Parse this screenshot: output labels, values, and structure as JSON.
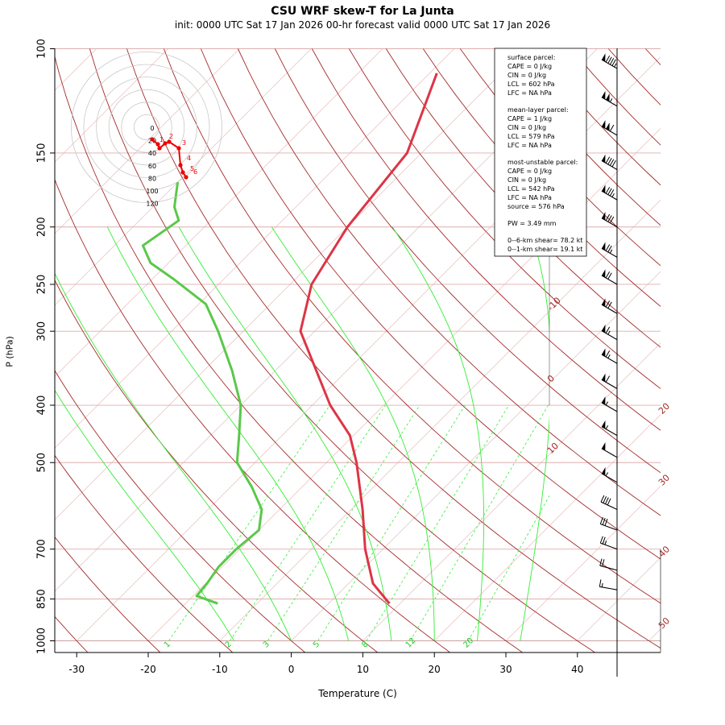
{
  "title": "CSU WRF skew-T for La Junta",
  "subtitle": "init: 0000 UTC Sat 17 Jan 2026     00-hr forecast valid 0000 UTC Sat 17 Jan 2026",
  "chart_data": {
    "type": "skew-t",
    "xlabel": "Temperature (C)",
    "ylabel": "P (hPa)",
    "xlim": [
      -33,
      52
    ],
    "ylim": [
      1000,
      100
    ],
    "x_ticks": [
      -30,
      -20,
      -10,
      0,
      10,
      20,
      30,
      40
    ],
    "p_ticks": [
      100,
      150,
      200,
      250,
      300,
      400,
      500,
      700,
      850,
      1000
    ],
    "isotherm_labels": [
      -10,
      0,
      10,
      20,
      30,
      40,
      50
    ],
    "mixing_ratio_labels": [
      "1",
      "2",
      "3",
      "5",
      "8",
      "12",
      "20"
    ],
    "temperature": {
      "name": "Temperature",
      "color": "#dc3545",
      "points": [
        {
          "p": 865,
          "t": 8.5
        },
        {
          "p": 800,
          "t": 3.4
        },
        {
          "p": 700,
          "t": -2.5
        },
        {
          "p": 600,
          "t": -8.4
        },
        {
          "p": 500,
          "t": -15.8
        },
        {
          "p": 450,
          "t": -20.5
        },
        {
          "p": 400,
          "t": -27.5
        },
        {
          "p": 300,
          "t": -42.0
        },
        {
          "p": 250,
          "t": -47.0
        },
        {
          "p": 200,
          "t": -50.0
        },
        {
          "p": 150,
          "t": -52.0
        },
        {
          "p": 110,
          "t": -59.0
        }
      ]
    },
    "dewpoint": {
      "name": "Dewpoint",
      "color": "#5ac84a",
      "points": [
        {
          "p": 865,
          "t": -15.5
        },
        {
          "p": 840,
          "t": -19.5
        },
        {
          "p": 800,
          "t": -19.8
        },
        {
          "p": 750,
          "t": -20.5
        },
        {
          "p": 700,
          "t": -20.5
        },
        {
          "p": 650,
          "t": -20.0
        },
        {
          "p": 600,
          "t": -22.5
        },
        {
          "p": 550,
          "t": -27.0
        },
        {
          "p": 500,
          "t": -32.5
        },
        {
          "p": 450,
          "t": -36.0
        },
        {
          "p": 400,
          "t": -40.0
        },
        {
          "p": 350,
          "t": -46.0
        },
        {
          "p": 300,
          "t": -53.5
        },
        {
          "p": 270,
          "t": -59.0
        },
        {
          "p": 245,
          "t": -67.0
        },
        {
          "p": 230,
          "t": -72.5
        },
        {
          "p": 215,
          "t": -76.0
        },
        {
          "p": 195,
          "t": -74.5
        },
        {
          "p": 185,
          "t": -77.0
        },
        {
          "p": 168,
          "t": -80.0
        }
      ]
    },
    "hodograph": {
      "rings": [
        "0",
        "20",
        "40",
        "60",
        "80",
        "100",
        "120"
      ],
      "point_labels": [
        "1",
        "2",
        "3",
        "4",
        "5",
        "6"
      ]
    },
    "wind_barbs": [
      {
        "p": 108,
        "dir": 300,
        "spd": 95
      },
      {
        "p": 125,
        "dir": 300,
        "spd": 105
      },
      {
        "p": 140,
        "dir": 300,
        "spd": 110
      },
      {
        "p": 160,
        "dir": 300,
        "spd": 90
      },
      {
        "p": 180,
        "dir": 300,
        "spd": 85
      },
      {
        "p": 200,
        "dir": 300,
        "spd": 80
      },
      {
        "p": 225,
        "dir": 300,
        "spd": 75
      },
      {
        "p": 250,
        "dir": 300,
        "spd": 70
      },
      {
        "p": 280,
        "dir": 300,
        "spd": 70
      },
      {
        "p": 310,
        "dir": 300,
        "spd": 65
      },
      {
        "p": 340,
        "dir": 300,
        "spd": 65
      },
      {
        "p": 375,
        "dir": 300,
        "spd": 60
      },
      {
        "p": 410,
        "dir": 300,
        "spd": 55
      },
      {
        "p": 450,
        "dir": 300,
        "spd": 55
      },
      {
        "p": 490,
        "dir": 300,
        "spd": 50
      },
      {
        "p": 540,
        "dir": 300,
        "spd": 55
      },
      {
        "p": 600,
        "dir": 295,
        "spd": 40
      },
      {
        "p": 650,
        "dir": 290,
        "spd": 30
      },
      {
        "p": 700,
        "dir": 290,
        "spd": 25
      },
      {
        "p": 760,
        "dir": 285,
        "spd": 20
      },
      {
        "p": 820,
        "dir": 280,
        "spd": 15
      }
    ]
  },
  "legend": {
    "surface_header": "surface parcel:",
    "surface_cape": "CAPE = 0 J/kg",
    "surface_cin": "CIN = 0 J/kg",
    "surface_lcl": "LCL = 602 hPa",
    "surface_lfc": "LFC = NA hPa",
    "meanlayer_header": "mean-layer parcel:",
    "meanlayer_cape": "CAPE = 1 J/kg",
    "meanlayer_cin": "CIN = 0 J/kg",
    "meanlayer_lcl": "LCL = 579 hPa",
    "meanlayer_lfc": "LFC = NA hPa",
    "mu_header": "most-unstable parcel:",
    "mu_cape": "CAPE = 0 J/kg",
    "mu_cin": "CIN = 0 J/kg",
    "mu_lcl": "LCL = 542 hPa",
    "mu_lfc": "LFC = NA hPa",
    "mu_source": "source = 576 hPa",
    "pw": "PW =  3.49 mm",
    "shear_06": "0--6-km shear= 78.2 kt",
    "shear_01": "0--1-km shear= 19.1 kt"
  }
}
